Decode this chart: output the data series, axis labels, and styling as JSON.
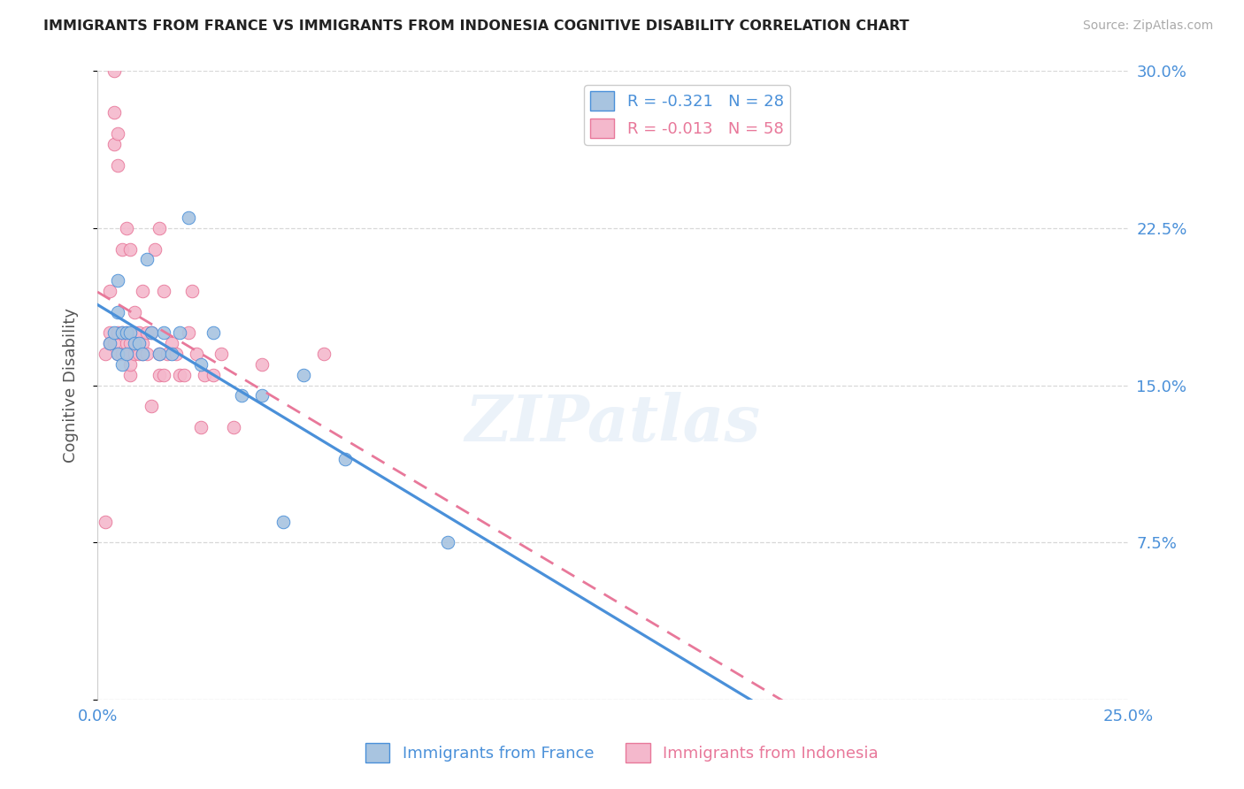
{
  "title": "IMMIGRANTS FROM FRANCE VS IMMIGRANTS FROM INDONESIA COGNITIVE DISABILITY CORRELATION CHART",
  "source": "Source: ZipAtlas.com",
  "ylabel": "Cognitive Disability",
  "xlim": [
    0.0,
    0.25
  ],
  "ylim": [
    0.0,
    0.3
  ],
  "xticks": [
    0.0,
    0.05,
    0.1,
    0.15,
    0.2,
    0.25
  ],
  "yticks": [
    0.0,
    0.075,
    0.15,
    0.225,
    0.3
  ],
  "xticklabels": [
    "0.0%",
    "",
    "",
    "",
    "",
    "25.0%"
  ],
  "yticklabels_right": [
    "",
    "7.5%",
    "15.0%",
    "22.5%",
    "30.0%"
  ],
  "france_color": "#a8c4e0",
  "indonesia_color": "#f4b8cc",
  "france_line_color": "#4a90d9",
  "indonesia_line_color": "#e8789a",
  "france_R": -0.321,
  "france_N": 28,
  "indonesia_R": -0.013,
  "indonesia_N": 58,
  "legend_label_france": "Immigrants from France",
  "legend_label_indonesia": "Immigrants from Indonesia",
  "france_scatter_x": [
    0.003,
    0.004,
    0.005,
    0.005,
    0.005,
    0.006,
    0.006,
    0.007,
    0.007,
    0.008,
    0.009,
    0.01,
    0.011,
    0.012,
    0.013,
    0.015,
    0.016,
    0.018,
    0.02,
    0.022,
    0.025,
    0.028,
    0.035,
    0.04,
    0.045,
    0.05,
    0.06,
    0.085
  ],
  "france_scatter_y": [
    0.17,
    0.175,
    0.165,
    0.2,
    0.185,
    0.16,
    0.175,
    0.165,
    0.175,
    0.175,
    0.17,
    0.17,
    0.165,
    0.21,
    0.175,
    0.165,
    0.175,
    0.165,
    0.175,
    0.23,
    0.16,
    0.175,
    0.145,
    0.145,
    0.085,
    0.155,
    0.115,
    0.075
  ],
  "indonesia_scatter_x": [
    0.002,
    0.002,
    0.003,
    0.003,
    0.003,
    0.004,
    0.004,
    0.004,
    0.004,
    0.005,
    0.005,
    0.005,
    0.005,
    0.006,
    0.006,
    0.006,
    0.007,
    0.007,
    0.007,
    0.007,
    0.008,
    0.008,
    0.008,
    0.008,
    0.009,
    0.009,
    0.009,
    0.01,
    0.01,
    0.01,
    0.011,
    0.011,
    0.011,
    0.012,
    0.012,
    0.013,
    0.013,
    0.014,
    0.015,
    0.015,
    0.015,
    0.016,
    0.016,
    0.017,
    0.018,
    0.019,
    0.02,
    0.021,
    0.022,
    0.023,
    0.024,
    0.025,
    0.026,
    0.028,
    0.03,
    0.033,
    0.04,
    0.055
  ],
  "indonesia_scatter_y": [
    0.165,
    0.085,
    0.175,
    0.195,
    0.17,
    0.265,
    0.28,
    0.3,
    0.17,
    0.255,
    0.27,
    0.165,
    0.175,
    0.215,
    0.165,
    0.175,
    0.165,
    0.17,
    0.175,
    0.225,
    0.155,
    0.16,
    0.17,
    0.215,
    0.165,
    0.175,
    0.185,
    0.165,
    0.17,
    0.175,
    0.165,
    0.17,
    0.195,
    0.165,
    0.175,
    0.14,
    0.175,
    0.215,
    0.155,
    0.165,
    0.225,
    0.155,
    0.195,
    0.165,
    0.17,
    0.165,
    0.155,
    0.155,
    0.175,
    0.195,
    0.165,
    0.13,
    0.155,
    0.155,
    0.165,
    0.13,
    0.16,
    0.165
  ],
  "watermark": "ZIPatlas",
  "background_color": "#ffffff",
  "grid_color": "#d8d8d8"
}
